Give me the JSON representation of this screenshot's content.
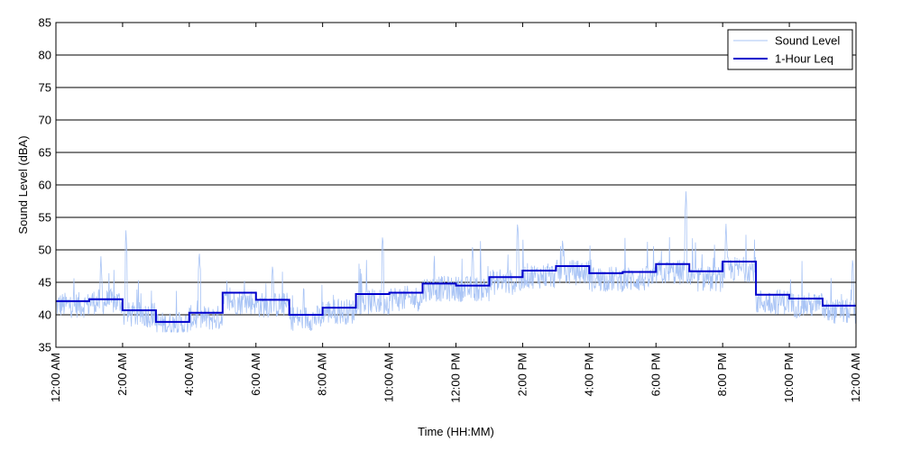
{
  "chart_data": {
    "type": "line",
    "title": "",
    "xlabel": "Time (HH:MM)",
    "ylabel": "Sound Level (dBA)",
    "ylim": [
      35,
      85
    ],
    "yticks": [
      35,
      40,
      45,
      50,
      55,
      60,
      65,
      70,
      75,
      80,
      85
    ],
    "xlim_hours": [
      0,
      24
    ],
    "xticks": [
      {
        "hour": 0,
        "label": "12:00 AM"
      },
      {
        "hour": 2,
        "label": "2:00 AM"
      },
      {
        "hour": 4,
        "label": "4:00 AM"
      },
      {
        "hour": 6,
        "label": "6:00 AM"
      },
      {
        "hour": 8,
        "label": "8:00 AM"
      },
      {
        "hour": 10,
        "label": "10:00 AM"
      },
      {
        "hour": 12,
        "label": "12:00 PM"
      },
      {
        "hour": 14,
        "label": "2:00 PM"
      },
      {
        "hour": 16,
        "label": "4:00 PM"
      },
      {
        "hour": 18,
        "label": "6:00 PM"
      },
      {
        "hour": 20,
        "label": "8:00 PM"
      },
      {
        "hour": 22,
        "label": "10:00 PM"
      },
      {
        "hour": 24,
        "label": "12:00 AM"
      }
    ],
    "grid": "horizontal",
    "legend_position": "top-right",
    "series": [
      {
        "name": "Sound Level",
        "color": "#a9c4f5",
        "style": "thin-line",
        "hourly_base": [
          41.5,
          42,
          40,
          38.5,
          39.5,
          42,
          41.5,
          39.5,
          40.5,
          42,
          42.5,
          44,
          44,
          45,
          46,
          46.5,
          45.5,
          45.5,
          46.5,
          45.5,
          47,
          42,
          41.5,
          40.5
        ],
        "peaks": [
          {
            "hour": 2.1,
            "value": 53
          },
          {
            "hour": 1.35,
            "value": 49
          },
          {
            "hour": 4.3,
            "value": 50
          },
          {
            "hour": 6.5,
            "value": 48
          },
          {
            "hour": 9.8,
            "value": 52.5
          },
          {
            "hour": 12.5,
            "value": 51
          },
          {
            "hour": 13.85,
            "value": 54.5
          },
          {
            "hour": 15.2,
            "value": 52
          },
          {
            "hour": 18.9,
            "value": 59
          },
          {
            "hour": 20.1,
            "value": 54
          },
          {
            "hour": 23.9,
            "value": 49
          }
        ]
      },
      {
        "name": "1-Hour Leq",
        "color": "#0000cc",
        "style": "step",
        "x_hours": [
          0,
          1,
          2,
          3,
          4,
          5,
          6,
          7,
          8,
          9,
          10,
          11,
          12,
          13,
          14,
          15,
          16,
          17,
          18,
          19,
          20,
          21,
          22,
          23
        ],
        "values": [
          42.1,
          42.4,
          40.7,
          38.9,
          40.3,
          43.4,
          42.3,
          40.0,
          41.1,
          43.2,
          43.4,
          44.8,
          44.5,
          45.8,
          46.8,
          47.5,
          46.4,
          46.6,
          47.8,
          46.7,
          48.2,
          43.1,
          42.5,
          41.4
        ]
      }
    ]
  }
}
